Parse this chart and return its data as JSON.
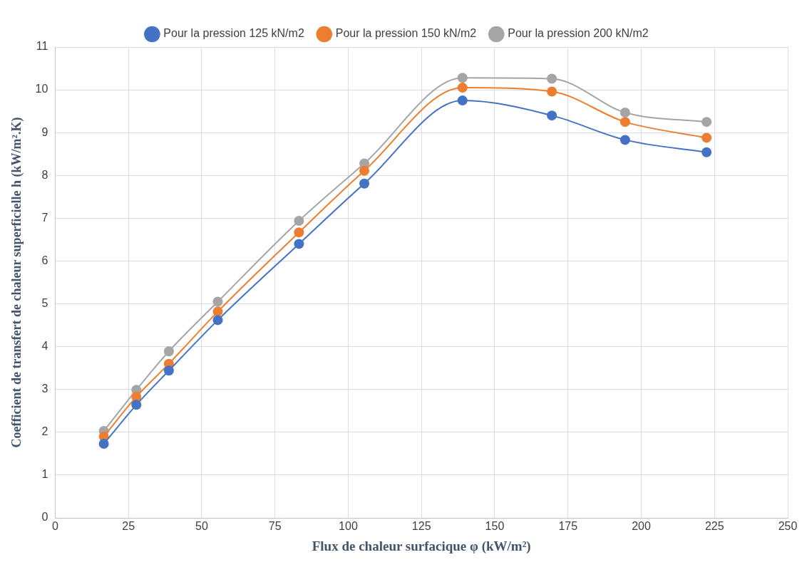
{
  "chart_data": {
    "type": "line",
    "xlabel": "Flux de chaleur surfacique φ (kW/m²)",
    "ylabel": "Coefficient de transfert de chaleur superficielle h (kW/m².K)",
    "x": [
      16.6,
      27.7,
      38.8,
      55.5,
      83.2,
      105.5,
      139.0,
      169.5,
      194.5,
      222.3
    ],
    "series": [
      {
        "name": "Pour la pression 125 kN/m2",
        "color": "#4472c4",
        "values": [
          1.73,
          2.64,
          3.44,
          4.62,
          6.4,
          7.81,
          9.75,
          9.4,
          8.83,
          8.54
        ]
      },
      {
        "name": "Pour la pression 150 kN/m2",
        "color": "#ed7d31",
        "values": [
          1.9,
          2.83,
          3.6,
          4.82,
          6.67,
          8.11,
          10.05,
          9.96,
          9.25,
          8.88
        ]
      },
      {
        "name": "Pour la pression 200 kN/m2",
        "color": "#a5a5a5",
        "values": [
          2.03,
          2.99,
          3.89,
          5.05,
          6.94,
          8.28,
          10.28,
          10.26,
          9.47,
          9.25
        ]
      }
    ],
    "xlim": [
      0,
      250
    ],
    "xticks": [
      0,
      25,
      50,
      75,
      100,
      125,
      150,
      175,
      200,
      225,
      250
    ],
    "ylim": [
      0,
      11
    ],
    "yticks": [
      0,
      1,
      2,
      3,
      4,
      5,
      6,
      7,
      8,
      9,
      10,
      11
    ],
    "grid": true,
    "legend": "top",
    "marker": "circle",
    "line_style": "solid"
  }
}
